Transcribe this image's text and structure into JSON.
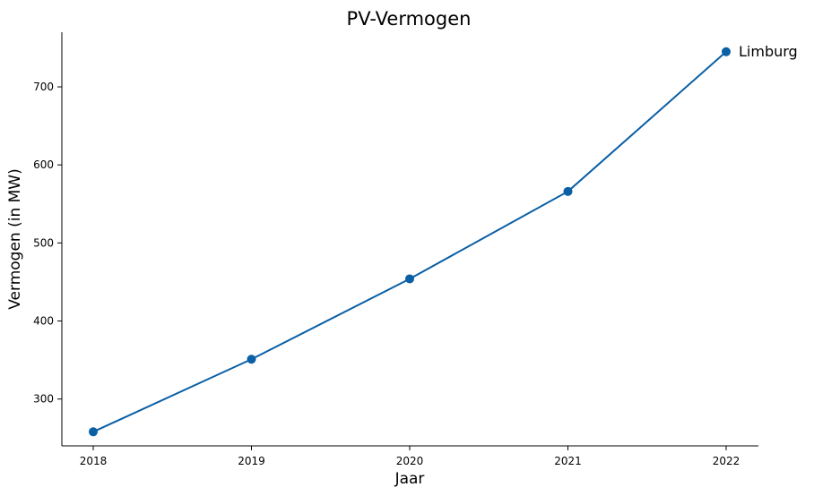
{
  "chart_data": {
    "type": "line",
    "title": "PV-Vermogen",
    "xlabel": "Jaar",
    "ylabel": "Vermogen (in MW)",
    "x": [
      "2018",
      "2019",
      "2020",
      "2021",
      "2022"
    ],
    "y_ticks": [
      300,
      400,
      500,
      600,
      700
    ],
    "ylim": [
      240,
      770
    ],
    "grid": false,
    "series": [
      {
        "name": "Limburg",
        "values": [
          258,
          351,
          454,
          566,
          745
        ],
        "color": "#0a5fa5"
      }
    ]
  }
}
